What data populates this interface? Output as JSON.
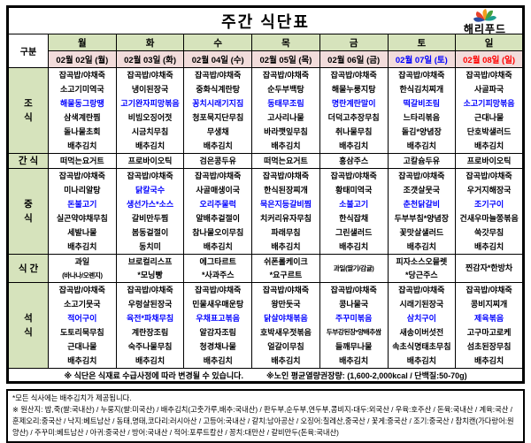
{
  "title": "주간 식단표",
  "logo": {
    "text": "해리푸드"
  },
  "table": {
    "corner_label": "구분",
    "days": [
      {
        "name": "월",
        "date": "02월 02일 (월)",
        "date_color": "#000000"
      },
      {
        "name": "화",
        "date": "02월 03일 (화)",
        "date_color": "#000000"
      },
      {
        "name": "수",
        "date": "02월 04일 (수)",
        "date_color": "#000000"
      },
      {
        "name": "목",
        "date": "02월 05일 (목)",
        "date_color": "#000000"
      },
      {
        "name": "금",
        "date": "02월 06일 (금)",
        "date_color": "#000000"
      },
      {
        "name": "토",
        "date": "02월 07일 (토)",
        "date_color": "#0000ff"
      },
      {
        "name": "일",
        "date": "02월 08일 (일)",
        "date_color": "#ff0000"
      }
    ],
    "meal_rows": [
      {
        "id": "breakfast",
        "label_lines": [
          "조",
          "식"
        ],
        "cells": [
          {
            "items": [
              {
                "t": "잡곡밥/야채죽"
              },
              {
                "t": "소고기미역국"
              },
              {
                "t": "해물동그랑땡",
                "hl": true
              },
              {
                "t": "삼색계란찜"
              },
              {
                "t": "돌나물초회"
              },
              {
                "t": "배추김치"
              }
            ]
          },
          {
            "items": [
              {
                "t": "잡곡밥/야채죽"
              },
              {
                "t": "냉이된장국"
              },
              {
                "t": "고기완자피망볶음",
                "hl": true
              },
              {
                "t": "비빔오징어젓"
              },
              {
                "t": "시금치무침"
              },
              {
                "t": "배추김치"
              }
            ]
          },
          {
            "items": [
              {
                "t": "잡곡밥/야채죽"
              },
              {
                "t": "중화식계란탕"
              },
              {
                "t": "꽁치시래기지짐",
                "hl": true
              },
              {
                "t": "청포묵지단무침"
              },
              {
                "t": "무생채"
              },
              {
                "t": "배추김치"
              }
            ]
          },
          {
            "items": [
              {
                "t": "잡곡밥/야채죽"
              },
              {
                "t": "순두부백탕"
              },
              {
                "t": "동태무조림",
                "hl": true
              },
              {
                "t": "고사리나물"
              },
              {
                "t": "바라깻잎무침"
              },
              {
                "t": "배추김치"
              }
            ]
          },
          {
            "items": [
              {
                "t": "잡곡밥/야채죽"
              },
              {
                "t": "해물누룽지탕"
              },
              {
                "t": "명란계란말이",
                "hl": true
              },
              {
                "t": "더덕고추장무침"
              },
              {
                "t": "취나물무침"
              },
              {
                "t": "배추김치"
              }
            ]
          },
          {
            "items": [
              {
                "t": "잡곡밥/야채죽"
              },
              {
                "t": "한식김치찌개"
              },
              {
                "t": "떡갈비조림",
                "hl": true
              },
              {
                "t": "느타리볶음"
              },
              {
                "t": "돌김*양념장"
              },
              {
                "t": "배추김치"
              }
            ]
          },
          {
            "items": [
              {
                "t": "잡곡밥/야채죽"
              },
              {
                "t": "사골파국"
              },
              {
                "t": "소고기피망볶음",
                "hl": true
              },
              {
                "t": "근대나물"
              },
              {
                "t": "단호박샐러드"
              },
              {
                "t": "배추김치"
              }
            ]
          }
        ]
      },
      {
        "id": "morning-snack",
        "label_lines": [
          "간 식"
        ],
        "cells": [
          {
            "items": [
              {
                "t": "떠먹는요거트"
              }
            ]
          },
          {
            "items": [
              {
                "t": "프로바이오틱"
              }
            ]
          },
          {
            "items": [
              {
                "t": "검은콩두유"
              }
            ]
          },
          {
            "items": [
              {
                "t": "떠먹는요거트"
              }
            ]
          },
          {
            "items": [
              {
                "t": "홍삼주스"
              }
            ]
          },
          {
            "items": [
              {
                "t": "고칼슘두유"
              }
            ]
          },
          {
            "items": [
              {
                "t": "프로바이오틱"
              }
            ]
          }
        ]
      },
      {
        "id": "lunch",
        "label_lines": [
          "중",
          "식"
        ],
        "cells": [
          {
            "items": [
              {
                "t": "잡곡밥/야채죽"
              },
              {
                "t": "미나리알탕"
              },
              {
                "t": "돈불고기",
                "hl": true
              },
              {
                "t": "실곤약야채무침"
              },
              {
                "t": "세발나물"
              },
              {
                "t": "배추김치"
              }
            ]
          },
          {
            "items": [
              {
                "t": "잡곡밥/야채죽"
              },
              {
                "t": "닭칼국수",
                "hl": true
              },
              {
                "t": "생선가스*소스",
                "hl": true
              },
              {
                "t": "갈비만두찜"
              },
              {
                "t": "봄동겉절이"
              },
              {
                "t": "동치미"
              }
            ]
          },
          {
            "items": [
              {
                "t": "잡곡밥/야채죽"
              },
              {
                "t": "사골매생이국"
              },
              {
                "t": "오리주물럭",
                "hl": true
              },
              {
                "t": "알배추겉절이"
              },
              {
                "t": "참나물오이무침"
              },
              {
                "t": "배추김치"
              }
            ]
          },
          {
            "items": [
              {
                "t": "잡곡밥/야채죽"
              },
              {
                "t": "한식된장찌개"
              },
              {
                "t": "묵은지등갈비찜",
                "hl": true
              },
              {
                "t": "치커리유자무침"
              },
              {
                "t": "파래무침"
              },
              {
                "t": "배추김치"
              }
            ]
          },
          {
            "items": [
              {
                "t": "잡곡밥/야채죽"
              },
              {
                "t": "황태미역국"
              },
              {
                "t": "소불고기",
                "hl": true
              },
              {
                "t": "한식잡채"
              },
              {
                "t": "그린샐러드"
              },
              {
                "t": "배추김치"
              }
            ]
          },
          {
            "items": [
              {
                "t": "잡곡밥/야채죽"
              },
              {
                "t": "조갯살뭇국"
              },
              {
                "t": "춘천닭갈비",
                "hl": true
              },
              {
                "t": "두부부침*양념장"
              },
              {
                "t": "꽃맛살샐러드"
              },
              {
                "t": "배추김치"
              }
            ]
          },
          {
            "items": [
              {
                "t": "잡곡밥/야채죽"
              },
              {
                "t": "우거지해장국"
              },
              {
                "t": "조기구이",
                "hl": true
              },
              {
                "t": "건새우마늘쫑볶음"
              },
              {
                "t": "쑥갓무침"
              },
              {
                "t": "배추김치"
              }
            ]
          }
        ]
      },
      {
        "id": "afternoon-snack",
        "label_lines": [
          "식 간"
        ],
        "cells": [
          {
            "items": [
              {
                "t": "과일"
              },
              {
                "t": "(바나나/오렌지)"
              }
            ]
          },
          {
            "items": [
              {
                "t": "브로컬리스프"
              },
              {
                "t": "*모닝빵"
              }
            ]
          },
          {
            "items": [
              {
                "t": "에그타르트"
              },
              {
                "t": "*사과주스"
              }
            ]
          },
          {
            "items": [
              {
                "t": "쉬폰롤케이크"
              },
              {
                "t": "*요구르트"
              }
            ]
          },
          {
            "items": [
              {
                "t": "과일(딸기/감귤)"
              }
            ]
          },
          {
            "items": [
              {
                "t": "피자소스오믈렛"
              },
              {
                "t": "*당근주스"
              }
            ]
          },
          {
            "items": [
              {
                "t": "찐감자*한방차"
              }
            ]
          }
        ]
      },
      {
        "id": "dinner",
        "label_lines": [
          "석",
          "식"
        ],
        "cells": [
          {
            "items": [
              {
                "t": "잡곡밥/야채죽"
              },
              {
                "t": "소고기뭇국"
              },
              {
                "t": "적어구이",
                "hl": true
              },
              {
                "t": "도토리묵무침"
              },
              {
                "t": "근대나물"
              },
              {
                "t": "배추김치"
              }
            ]
          },
          {
            "items": [
              {
                "t": "잡곡밥/야채죽"
              },
              {
                "t": "우렁살된장국"
              },
              {
                "t": "육전*파채무침",
                "hl": true
              },
              {
                "t": "계란장조림"
              },
              {
                "t": "숙주나물무침"
              },
              {
                "t": "배추김치"
              }
            ]
          },
          {
            "items": [
              {
                "t": "잡곡밥/야채죽"
              },
              {
                "t": "민물새우매운탕"
              },
              {
                "t": "우채표고볶음",
                "hl": true
              },
              {
                "t": "알감자조림"
              },
              {
                "t": "청경채나물"
              },
              {
                "t": "배추김치"
              }
            ]
          },
          {
            "items": [
              {
                "t": "잡곡밥/야채죽"
              },
              {
                "t": "왕만둣국"
              },
              {
                "t": "닭살야채볶음",
                "hl": true
              },
              {
                "t": "호박새우젓볶음"
              },
              {
                "t": "얼갈이무침"
              },
              {
                "t": "배추김치"
              }
            ]
          },
          {
            "items": [
              {
                "t": "잡곡밥/야채죽"
              },
              {
                "t": "콩나물국"
              },
              {
                "t": "주꾸미볶음",
                "hl": true
              },
              {
                "t": "두부강된장*양배추쌈"
              },
              {
                "t": "들깨무나물"
              },
              {
                "t": "배추김치"
              }
            ]
          },
          {
            "items": [
              {
                "t": "잡곡밥/야채죽"
              },
              {
                "t": "시래기된장국"
              },
              {
                "t": "삼치구이",
                "hl": true
              },
              {
                "t": "새송이버섯전"
              },
              {
                "t": "속초식명태초무침"
              },
              {
                "t": "배추김치"
              }
            ]
          },
          {
            "items": [
              {
                "t": "잡곡밥/야채죽"
              },
              {
                "t": "콩비지찌개"
              },
              {
                "t": "제육볶음",
                "hl": true
              },
              {
                "t": "고구마고로케"
              },
              {
                "t": "섬초된장무침"
              },
              {
                "t": "배추김치"
              }
            ]
          }
        ]
      }
    ],
    "footnote_left": "※ 식단은 식재료 수급사정에 따라 변경될 수 있습니다.",
    "footnote_right": "※노인 평균열량권장량: (1,600-2,000kcal / 단백질:50-70g)"
  },
  "notes": {
    "line1": "*모든 식사에는 배추김치가 제공됩니다.",
    "line2": "※ 원산지: 밥,죽(쌀:국내산) / 누룽지(쌀:미국산) / 배추김치(고춧가루,배추:국내산) / 판두부,순두부,연두부,콩비지-대두:외국산 / 우육:호주산 / 돈육:국내산 / 계육:국산 / 훈제오리:중국산 / 낙지:베트남산 / 동태,명태,코다리:러시아산 / 고등어:국내산 / 갈치:남아공산 / 오징어:칠레산,중국산 / 꽃게:중국산 / 조기:중국산 / 참치캔(가다랑어:원양산) / 주꾸미:베트남산 / 아귀:중국산 / 방어:국내산 / 적어:포루트칼산 / 꽁치:대만산 / 갈비만두(돈육:국내산)"
  },
  "colors": {
    "header_green": "#d6e3bc",
    "date_pink": "#f2dcdb",
    "highlight_blue": "#0000ff",
    "sunday_red": "#ff0000"
  }
}
